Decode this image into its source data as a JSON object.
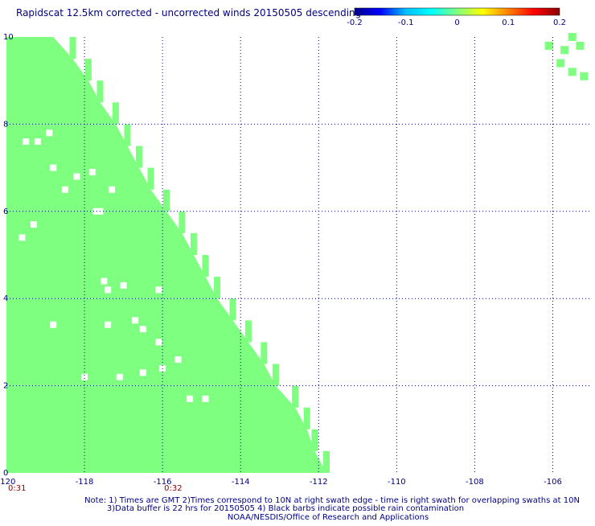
{
  "chart_data": {
    "type": "heatmap",
    "title": "Rapidscat 12.5km corrected - uncorrected winds 20150505 descending",
    "xlim": [
      -120,
      -105
    ],
    "ylim": [
      0,
      10
    ],
    "x_ticks": [
      -120,
      -118,
      -116,
      -114,
      -112,
      -110,
      -108,
      -106
    ],
    "x_tick_labels": [
      "-120",
      "-118",
      "-116",
      "-114",
      "-112",
      "-110",
      "-108",
      "-106"
    ],
    "y_ticks": [
      0,
      2,
      4,
      6,
      8,
      10
    ],
    "y_tick_labels": [
      "0",
      "2",
      "4",
      "6",
      "8",
      "10"
    ],
    "grid": "dotted",
    "colorbar": {
      "ticks": [
        -0.2,
        -0.1,
        0,
        0.1,
        0.2
      ],
      "tick_labels": [
        "-0.2",
        "-0.1",
        "0",
        "0.1",
        "0.2"
      ],
      "colors": [
        "#00008b",
        "#0000ff",
        "#00bfff",
        "#00ffff",
        "#7fff7f",
        "#ffff00",
        "#ff8000",
        "#ff0000",
        "#8b0000"
      ]
    },
    "value_shown": 0,
    "fill_color": "#7fff7f",
    "swath_main_right_edge": [
      [
        0,
        -111.8
      ],
      [
        0.5,
        -112.1
      ],
      [
        1,
        -112.3
      ],
      [
        1.5,
        -112.6
      ],
      [
        2,
        -113.1
      ],
      [
        2.5,
        -113.4
      ],
      [
        3,
        -113.8
      ],
      [
        3.5,
        -114.2
      ],
      [
        4,
        -114.6
      ],
      [
        4.5,
        -114.9
      ],
      [
        5,
        -115.2
      ],
      [
        5.5,
        -115.5
      ],
      [
        6,
        -115.9
      ],
      [
        6.5,
        -116.3
      ],
      [
        7,
        -116.6
      ],
      [
        7.5,
        -116.9
      ],
      [
        8,
        -117.2
      ],
      [
        8.5,
        -117.6
      ],
      [
        9,
        -117.9
      ],
      [
        9.5,
        -118.3
      ],
      [
        10,
        -118.8
      ]
    ],
    "swath_gaps": [
      [
        -119.5,
        7.6
      ],
      [
        -119.2,
        7.6
      ],
      [
        -118.9,
        7.8
      ],
      [
        -118.8,
        7.0
      ],
      [
        -118.2,
        6.8
      ],
      [
        -118.5,
        6.5
      ],
      [
        -117.8,
        6.9
      ],
      [
        -117.3,
        6.5
      ],
      [
        -117.6,
        6.0
      ],
      [
        -117.7,
        6.0
      ],
      [
        -119.3,
        5.7
      ],
      [
        -119.6,
        5.4
      ],
      [
        -117.5,
        4.4
      ],
      [
        -117.4,
        4.2
      ],
      [
        -117.0,
        4.3
      ],
      [
        -116.1,
        4.2
      ],
      [
        -118.8,
        3.4
      ],
      [
        -117.4,
        3.4
      ],
      [
        -116.7,
        3.5
      ],
      [
        -116.5,
        3.3
      ],
      [
        -116.1,
        3.0
      ],
      [
        -116.5,
        2.3
      ],
      [
        -116.0,
        2.4
      ],
      [
        -117.1,
        2.2
      ],
      [
        -115.6,
        2.6
      ],
      [
        -114.9,
        1.7
      ],
      [
        -115.3,
        1.7
      ],
      [
        -118.0,
        2.2
      ]
    ],
    "swath_upper_right": [
      [
        -105.5,
        10.0
      ],
      [
        -105.3,
        9.8
      ],
      [
        -105.7,
        9.7
      ],
      [
        -105.8,
        9.4
      ],
      [
        -105.5,
        9.2
      ],
      [
        -105.2,
        9.1
      ],
      [
        -106.1,
        9.8
      ]
    ],
    "x_time_labels": [
      {
        "x": -120,
        "label": "0:31"
      },
      {
        "x": -116,
        "label": "0:32"
      }
    ],
    "notes": [
      "Note: 1) Times are GMT 2)Times correspond to 10N at right swath edge - time is right swath for overlapping swaths at 10N",
      "3)Data buffer is 22 hrs for 20150505 4) Black barbs indicate possible rain contamination",
      "NOAA/NESDIS/Office of Research and Applications"
    ]
  }
}
